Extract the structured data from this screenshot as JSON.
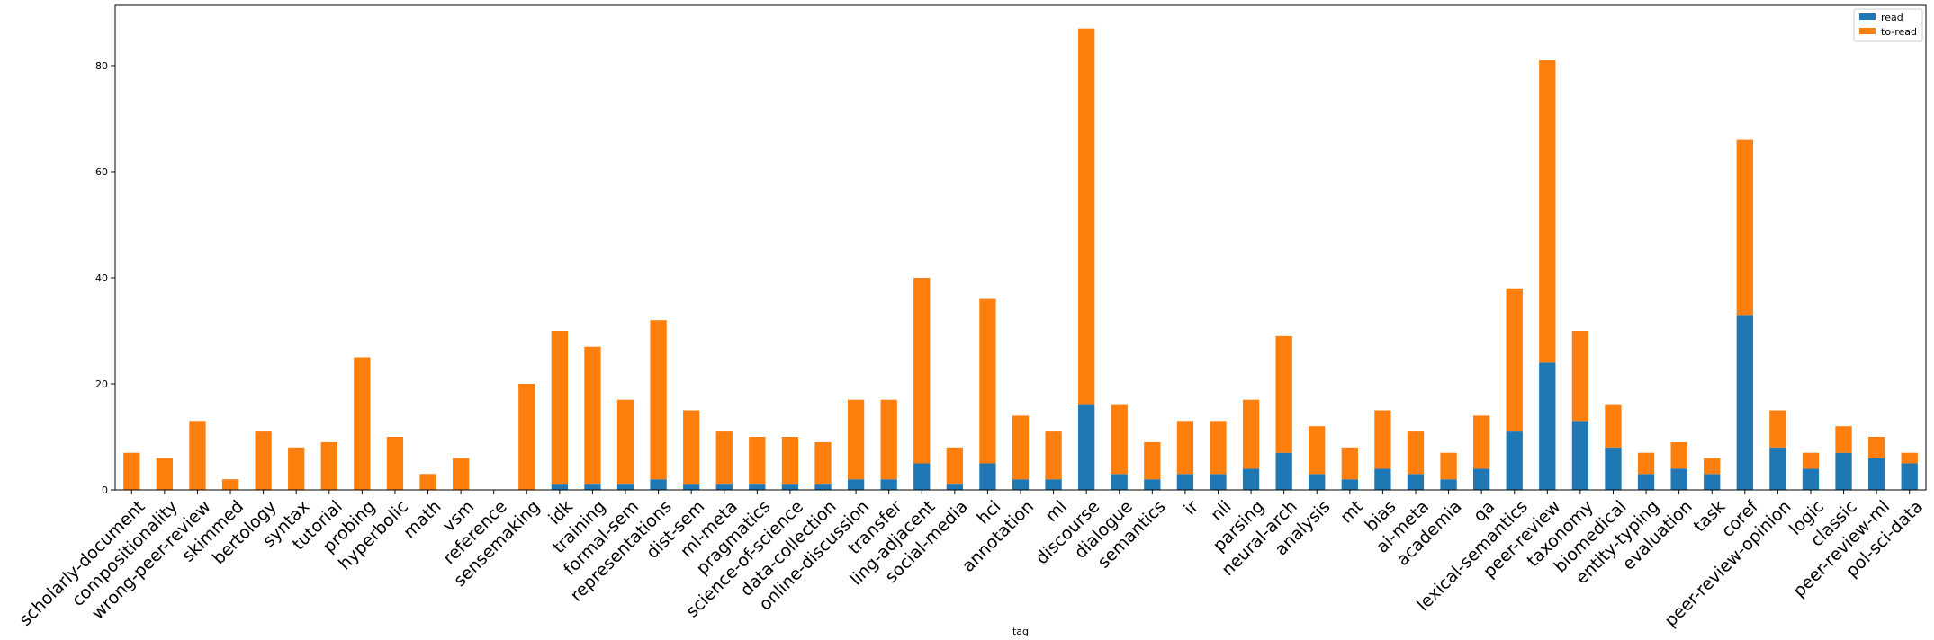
{
  "chart_data": {
    "type": "bar",
    "stacked": true,
    "xlabel": "tag",
    "ylabel": "",
    "ylim": [
      0,
      91.35
    ],
    "yticks": [
      0,
      20,
      40,
      60,
      80
    ],
    "legend_position": "top-right",
    "grid": false,
    "categories": [
      "scholarly-document",
      "compositionality",
      "wrong-peer-review",
      "skimmed",
      "bertology",
      "syntax",
      "tutorial",
      "probing",
      "hyperbolic",
      "math",
      "vsm",
      "reference",
      "sensemaking",
      "idk",
      "training",
      "formal-sem",
      "representations",
      "dist-sem",
      "ml-meta",
      "pragmatics",
      "science-of-science",
      "data-collection",
      "online-discussion",
      "transfer",
      "ling-adjacent",
      "social-media",
      "hci",
      "annotation",
      "ml",
      "discourse",
      "dialogue",
      "semantics",
      "ir",
      "nli",
      "parsing",
      "neural-arch",
      "analysis",
      "mt",
      "bias",
      "ai-meta",
      "academia",
      "qa",
      "lexical-semantics",
      "peer-review",
      "taxonomy",
      "biomedical",
      "entity-typing",
      "evaluation",
      "task",
      "coref",
      "peer-review-opinion",
      "logic",
      "classic",
      "peer-review-ml",
      "pol-sci-data"
    ],
    "series": [
      {
        "name": "read",
        "color": "#1f77b4",
        "values": [
          0,
          0,
          0,
          0,
          0,
          0,
          0,
          0,
          0,
          0,
          0,
          0,
          0,
          1,
          1,
          1,
          2,
          1,
          1,
          1,
          1,
          1,
          2,
          2,
          5,
          1,
          5,
          2,
          2,
          16,
          3,
          2,
          3,
          3,
          4,
          7,
          3,
          2,
          4,
          3,
          2,
          4,
          11,
          24,
          13,
          8,
          3,
          4,
          3,
          33,
          8,
          4,
          7,
          6,
          5
        ]
      },
      {
        "name": "to-read",
        "color": "#ff7f0e",
        "values": [
          7,
          6,
          13,
          2,
          11,
          8,
          9,
          25,
          10,
          3,
          6,
          0,
          20,
          29,
          26,
          16,
          30,
          14,
          10,
          9,
          9,
          8,
          15,
          15,
          35,
          7,
          31,
          12,
          9,
          71,
          13,
          7,
          10,
          10,
          13,
          22,
          9,
          6,
          11,
          8,
          5,
          10,
          27,
          57,
          17,
          8,
          4,
          5,
          3,
          33,
          7,
          3,
          5,
          4,
          2
        ]
      }
    ]
  }
}
